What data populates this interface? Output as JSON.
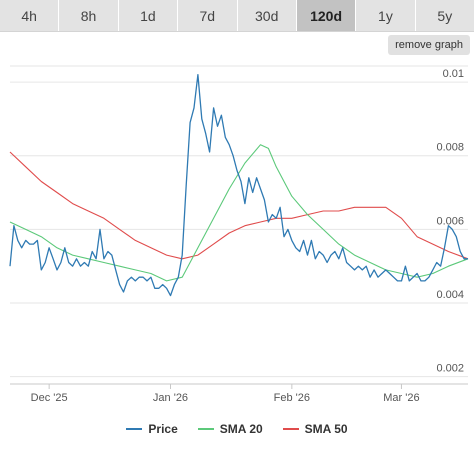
{
  "tabs": [
    {
      "label": "4h",
      "active": false
    },
    {
      "label": "8h",
      "active": false
    },
    {
      "label": "1d",
      "active": false
    },
    {
      "label": "7d",
      "active": false
    },
    {
      "label": "30d",
      "active": false
    },
    {
      "label": "120d",
      "active": true
    },
    {
      "label": "1y",
      "active": false
    },
    {
      "label": "5y",
      "active": false
    }
  ],
  "remove_graph_label": "remove graph",
  "colors": {
    "price": "#2f7ab3",
    "sma20": "#5cc97a",
    "sma50": "#e04c4c",
    "grid": "#e6e6e6"
  },
  "chart_data": {
    "type": "line",
    "x_ticks": [
      {
        "label": "Dec '25",
        "day": 10
      },
      {
        "label": "Jan '26",
        "day": 41
      },
      {
        "label": "Feb '26",
        "day": 72
      },
      {
        "label": "Mar '26",
        "day": 100
      }
    ],
    "y_ticks": [
      0.002,
      0.004,
      0.006,
      0.008,
      0.01
    ],
    "ylim": [
      0.0018,
      0.0106
    ],
    "xlim": [
      0,
      117
    ],
    "legend_position": "bottom",
    "grid": true,
    "series": [
      {
        "name": "Price",
        "color": "#2f7ab3",
        "points": [
          [
            0,
            0.005
          ],
          [
            1,
            0.0061
          ],
          [
            2,
            0.0057
          ],
          [
            3,
            0.0055
          ],
          [
            4,
            0.0057
          ],
          [
            5,
            0.0056
          ],
          [
            6,
            0.0056
          ],
          [
            7,
            0.0057
          ],
          [
            8,
            0.0049
          ],
          [
            9,
            0.0051
          ],
          [
            10,
            0.0055
          ],
          [
            11,
            0.0052
          ],
          [
            12,
            0.0049
          ],
          [
            13,
            0.0051
          ],
          [
            14,
            0.0055
          ],
          [
            15,
            0.0051
          ],
          [
            16,
            0.005
          ],
          [
            17,
            0.0052
          ],
          [
            18,
            0.005
          ],
          [
            19,
            0.0051
          ],
          [
            20,
            0.005
          ],
          [
            21,
            0.0054
          ],
          [
            22,
            0.0052
          ],
          [
            23,
            0.006
          ],
          [
            24,
            0.0052
          ],
          [
            25,
            0.0054
          ],
          [
            26,
            0.0053
          ],
          [
            27,
            0.0049
          ],
          [
            28,
            0.0045
          ],
          [
            29,
            0.0043
          ],
          [
            30,
            0.0046
          ],
          [
            31,
            0.0047
          ],
          [
            32,
            0.0046
          ],
          [
            33,
            0.0047
          ],
          [
            34,
            0.0047
          ],
          [
            35,
            0.0046
          ],
          [
            36,
            0.0047
          ],
          [
            37,
            0.0044
          ],
          [
            38,
            0.0044
          ],
          [
            39,
            0.0045
          ],
          [
            40,
            0.0044
          ],
          [
            41,
            0.0042
          ],
          [
            42,
            0.0045
          ],
          [
            43,
            0.0047
          ],
          [
            44,
            0.0053
          ],
          [
            45,
            0.0072
          ],
          [
            46,
            0.0089
          ],
          [
            47,
            0.0093
          ],
          [
            48,
            0.0102
          ],
          [
            49,
            0.009
          ],
          [
            50,
            0.0086
          ],
          [
            51,
            0.0081
          ],
          [
            52,
            0.0093
          ],
          [
            53,
            0.0088
          ],
          [
            54,
            0.0091
          ],
          [
            55,
            0.0085
          ],
          [
            56,
            0.0083
          ],
          [
            57,
            0.008
          ],
          [
            58,
            0.0076
          ],
          [
            59,
            0.0073
          ],
          [
            60,
            0.0067
          ],
          [
            61,
            0.0074
          ],
          [
            62,
            0.007
          ],
          [
            63,
            0.0074
          ],
          [
            64,
            0.0071
          ],
          [
            65,
            0.0068
          ],
          [
            66,
            0.0062
          ],
          [
            67,
            0.0064
          ],
          [
            68,
            0.0063
          ],
          [
            69,
            0.0066
          ],
          [
            70,
            0.0058
          ],
          [
            71,
            0.006
          ],
          [
            72,
            0.0057
          ],
          [
            73,
            0.0055
          ],
          [
            74,
            0.0054
          ],
          [
            75,
            0.0057
          ],
          [
            76,
            0.0053
          ],
          [
            77,
            0.0057
          ],
          [
            78,
            0.0052
          ],
          [
            79,
            0.0054
          ],
          [
            80,
            0.0053
          ],
          [
            81,
            0.0051
          ],
          [
            82,
            0.0053
          ],
          [
            83,
            0.0054
          ],
          [
            84,
            0.0052
          ],
          [
            85,
            0.0055
          ],
          [
            86,
            0.0051
          ],
          [
            87,
            0.005
          ],
          [
            88,
            0.0049
          ],
          [
            89,
            0.005
          ],
          [
            90,
            0.0049
          ],
          [
            91,
            0.005
          ],
          [
            92,
            0.0047
          ],
          [
            93,
            0.0049
          ],
          [
            94,
            0.0047
          ],
          [
            95,
            0.0048
          ],
          [
            96,
            0.0049
          ],
          [
            97,
            0.0048
          ],
          [
            98,
            0.0047
          ],
          [
            99,
            0.0046
          ],
          [
            100,
            0.0046
          ],
          [
            101,
            0.005
          ],
          [
            102,
            0.0046
          ],
          [
            103,
            0.0047
          ],
          [
            104,
            0.0048
          ],
          [
            105,
            0.0046
          ],
          [
            106,
            0.0046
          ],
          [
            107,
            0.0047
          ],
          [
            108,
            0.0049
          ],
          [
            109,
            0.0051
          ],
          [
            110,
            0.005
          ],
          [
            111,
            0.0055
          ],
          [
            112,
            0.0061
          ],
          [
            113,
            0.006
          ],
          [
            114,
            0.0058
          ],
          [
            115,
            0.0054
          ],
          [
            116,
            0.0052
          ],
          [
            117,
            0.0052
          ]
        ]
      },
      {
        "name": "SMA 20",
        "color": "#5cc97a",
        "points": [
          [
            0,
            0.0062
          ],
          [
            4,
            0.006
          ],
          [
            8,
            0.0058
          ],
          [
            12,
            0.0055
          ],
          [
            16,
            0.0053
          ],
          [
            20,
            0.0052
          ],
          [
            24,
            0.0051
          ],
          [
            28,
            0.005
          ],
          [
            32,
            0.0049
          ],
          [
            36,
            0.0048
          ],
          [
            40,
            0.0046
          ],
          [
            44,
            0.0047
          ],
          [
            48,
            0.0055
          ],
          [
            52,
            0.0063
          ],
          [
            56,
            0.0071
          ],
          [
            60,
            0.0078
          ],
          [
            64,
            0.0083
          ],
          [
            66,
            0.0082
          ],
          [
            68,
            0.0077
          ],
          [
            72,
            0.0069
          ],
          [
            76,
            0.0064
          ],
          [
            80,
            0.006
          ],
          [
            84,
            0.0056
          ],
          [
            88,
            0.0053
          ],
          [
            92,
            0.0051
          ],
          [
            96,
            0.0049
          ],
          [
            100,
            0.0048
          ],
          [
            104,
            0.0047
          ],
          [
            108,
            0.0048
          ],
          [
            112,
            0.005
          ],
          [
            117,
            0.0052
          ]
        ]
      },
      {
        "name": "SMA 50",
        "color": "#e04c4c",
        "points": [
          [
            0,
            0.0081
          ],
          [
            4,
            0.0077
          ],
          [
            8,
            0.0073
          ],
          [
            12,
            0.007
          ],
          [
            16,
            0.0067
          ],
          [
            20,
            0.0065
          ],
          [
            24,
            0.0063
          ],
          [
            28,
            0.006
          ],
          [
            32,
            0.0057
          ],
          [
            36,
            0.0055
          ],
          [
            40,
            0.0053
          ],
          [
            44,
            0.0052
          ],
          [
            48,
            0.0053
          ],
          [
            52,
            0.0056
          ],
          [
            56,
            0.0059
          ],
          [
            60,
            0.0061
          ],
          [
            64,
            0.0062
          ],
          [
            68,
            0.0063
          ],
          [
            72,
            0.0063
          ],
          [
            76,
            0.0064
          ],
          [
            80,
            0.0065
          ],
          [
            84,
            0.0065
          ],
          [
            88,
            0.0066
          ],
          [
            92,
            0.0066
          ],
          [
            96,
            0.0066
          ],
          [
            100,
            0.0063
          ],
          [
            104,
            0.0058
          ],
          [
            108,
            0.0056
          ],
          [
            112,
            0.0054
          ],
          [
            117,
            0.0052
          ]
        ]
      }
    ]
  }
}
